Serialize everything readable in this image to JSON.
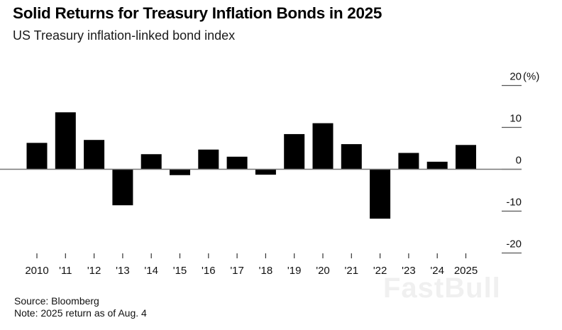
{
  "chart_data": {
    "type": "bar",
    "title": "Solid Returns for Treasury Inflation Bonds in 2025",
    "subtitle": "US Treasury inflation-linked bond index",
    "xlabel": "",
    "ylabel": "(%)",
    "categories": [
      "2010",
      "'11",
      "'12",
      "'13",
      "'14",
      "'15",
      "'16",
      "'17",
      "'18",
      "'19",
      "'20",
      "'21",
      "'22",
      "'23",
      "'24",
      "2025"
    ],
    "values": [
      6.3,
      13.6,
      7.0,
      -8.6,
      3.6,
      -1.4,
      4.7,
      3.0,
      -1.3,
      8.4,
      11.0,
      6.0,
      -11.8,
      3.9,
      1.8,
      5.8
    ],
    "ylim": [
      -20,
      20
    ],
    "yticks": [
      20,
      10,
      0,
      -10,
      -20
    ],
    "ytick_labels": [
      "20",
      "10",
      "0",
      "-10",
      "-20"
    ],
    "y_unit_label": "(%)",
    "grid": false,
    "legend": "none",
    "bar_color": "#000000"
  },
  "footer": {
    "source": "Source: Bloomberg",
    "note": "Note: 2025 return as of Aug. 4"
  },
  "watermark": "FastBull"
}
